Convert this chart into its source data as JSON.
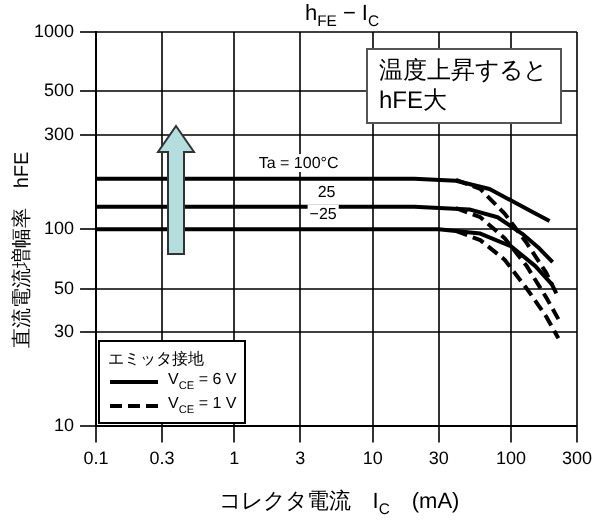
{
  "chart_data": {
    "type": "line",
    "title": "h$_{FE}$ − I$_{C}$",
    "xlabel": "コレクタ電流　I$_{C}$　(mA)",
    "ylabel": "直流電流増幅率　hFE",
    "log": "xy",
    "grid": true,
    "legend": "bottom left",
    "legend_title": "エミッタ接地",
    "marker": "none",
    "xlim": [
      0.1,
      300
    ],
    "xticks": [
      0.1,
      0.3,
      1,
      3,
      10,
      30,
      100,
      300
    ],
    "ylim": [
      10,
      1000
    ],
    "yticks": [
      10,
      30,
      50,
      100,
      300,
      500,
      1000
    ],
    "series": [
      {
        "name": "V$_{CE}$ = 6 V",
        "color": "#000000",
        "line_style": "solid",
        "x": [
          0.1,
          20,
          40,
          70,
          110,
          150,
          190
        ],
        "values": [
          180,
          180,
          176,
          160,
          135,
          120,
          110
        ]
      },
      {
        "color": "#000000",
        "line_style": "solid",
        "x": [
          0.1,
          20,
          50,
          80,
          120,
          160,
          200
        ],
        "values": [
          130,
          130,
          126,
          115,
          95,
          80,
          68
        ]
      },
      {
        "color": "#000000",
        "line_style": "solid",
        "x": [
          0.1,
          30,
          60,
          100,
          150,
          200
        ],
        "values": [
          100,
          100,
          95,
          82,
          65,
          52
        ]
      },
      {
        "name": "V$_{CE}$ = 1 V",
        "color": "#000000",
        "line_style": "dashed",
        "x": [
          40,
          60,
          90,
          130,
          180,
          220
        ],
        "values": [
          178,
          160,
          120,
          85,
          60,
          45
        ]
      },
      {
        "color": "#000000",
        "line_style": "dashed",
        "x": [
          40,
          60,
          90,
          130,
          180,
          220
        ],
        "values": [
          128,
          115,
          90,
          65,
          45,
          35
        ]
      },
      {
        "color": "#000000",
        "line_style": "dashed",
        "x": [
          40,
          60,
          90,
          130,
          180,
          220
        ],
        "values": [
          98,
          88,
          70,
          50,
          36,
          28
        ]
      }
    ],
    "annotations": [
      {
        "text": "Ta = 100°C",
        "x": 1.5,
        "y": 195
      },
      {
        "text": "25",
        "x": 4,
        "y": 140
      },
      {
        "text": "−25",
        "x": 3.5,
        "y": 108
      },
      "温度上昇すると\nhFE大"
    ]
  }
}
